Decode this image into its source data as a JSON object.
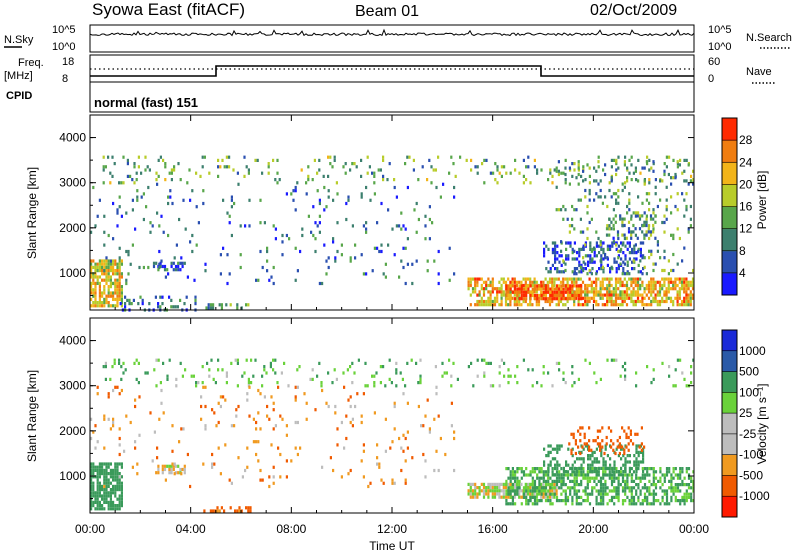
{
  "header": {
    "station": "Syowa East (fitACF)",
    "beam": "Beam 01",
    "date": "02/Oct/2009"
  },
  "strip": {
    "nsky_label": "N.Sky",
    "nsky_ticks": [
      "10^5",
      "10^0"
    ],
    "nsearch_label": "N.Search",
    "nsearch_ticks": [
      "10^5",
      "10^0"
    ],
    "freq_label": "Freq.",
    "freq_unit": "[MHz]",
    "freq_ticks": [
      "18",
      "8"
    ],
    "nave_label": "Nave",
    "nave_ticks": [
      "60",
      "0"
    ],
    "cpid_label": "CPID",
    "cpid_value": "normal (fast) 151"
  },
  "colors": {
    "power": [
      "#1a1aff",
      "#2a4fb0",
      "#3c7f6e",
      "#58a64a",
      "#b8cc2a",
      "#f2b419",
      "#f07d10",
      "#ff2a00"
    ],
    "velocity": [
      "#ff1a00",
      "#f05a00",
      "#f09a20",
      "#bdbdbd",
      "#bdbdbd",
      "#6ad23a",
      "#3a9a5a",
      "#2a5aa8",
      "#1a2ad8"
    ],
    "ground_scatter": "#bdbdbd"
  },
  "chart_data": [
    {
      "type": "heatmap",
      "panel": "power",
      "ylabel": "Slant Range [km]",
      "yticks": [
        "1000",
        "2000",
        "3000",
        "4000"
      ],
      "ylim": [
        180,
        4500
      ],
      "xlim": [
        0,
        24
      ],
      "colorbar_label": "Power [dB]",
      "colorbar_ticks": [
        "4",
        "8",
        "12",
        "16",
        "20",
        "24",
        "28"
      ],
      "colorbar_range": [
        0,
        32
      ],
      "clusters": [
        {
          "t": [
            0.0,
            1.3
          ],
          "r": [
            250,
            1300
          ],
          "value": 20,
          "density": 0.8
        },
        {
          "t": [
            1.0,
            4.2
          ],
          "r": [
            200,
            500
          ],
          "value": 8,
          "density": 0.3
        },
        {
          "t": [
            2.5,
            3.8
          ],
          "r": [
            1100,
            1250
          ],
          "value": 6,
          "density": 0.6
        },
        {
          "t": [
            4.5,
            6.5
          ],
          "r": [
            220,
            330
          ],
          "value": 12,
          "density": 0.5
        },
        {
          "t": [
            0.5,
            24.0
          ],
          "r": [
            3000,
            3600
          ],
          "value": 14,
          "density": 0.1
        },
        {
          "t": [
            0.0,
            14.5
          ],
          "r": [
            800,
            3000
          ],
          "value": 8,
          "density": 0.05
        },
        {
          "t": [
            15.0,
            24.0
          ],
          "r": [
            300,
            900
          ],
          "value": 22,
          "density": 0.65
        },
        {
          "t": [
            16.5,
            19.5
          ],
          "r": [
            400,
            750
          ],
          "value": 28,
          "density": 0.85
        },
        {
          "t": [
            18.0,
            22.0
          ],
          "r": [
            1000,
            1700
          ],
          "value": 6,
          "density": 0.35
        },
        {
          "t": [
            20.5,
            22.5
          ],
          "r": [
            1800,
            2300
          ],
          "value": 10,
          "density": 0.35
        },
        {
          "t": [
            18.5,
            24.0
          ],
          "r": [
            1000,
            3500
          ],
          "value": 12,
          "density": 0.12
        }
      ]
    },
    {
      "type": "heatmap",
      "panel": "velocity",
      "xlabel": "Time UT",
      "xticks": [
        "00:00",
        "04:00",
        "08:00",
        "12:00",
        "16:00",
        "20:00",
        "00:00"
      ],
      "ylabel": "Slant Range [km]",
      "yticks": [
        "1000",
        "2000",
        "3000",
        "4000"
      ],
      "ylim": [
        180,
        4500
      ],
      "xlim": [
        0,
        24
      ],
      "colorbar_label": "Velocity [m s⁻¹]",
      "colorbar_ticks": [
        "1000",
        "500",
        "100",
        "25",
        "-25",
        "-100",
        "-500",
        "-1000"
      ],
      "clusters": [
        {
          "t": [
            0.0,
            1.3
          ],
          "r": [
            250,
            1300
          ],
          "value": 400,
          "density": 0.8
        },
        {
          "t": [
            2.5,
            3.8
          ],
          "r": [
            1100,
            1250
          ],
          "value": 0,
          "density": 0.6
        },
        {
          "t": [
            4.5,
            6.5
          ],
          "r": [
            220,
            330
          ],
          "value": -150,
          "density": 0.5
        },
        {
          "t": [
            0.5,
            24.0
          ],
          "r": [
            3000,
            3600
          ],
          "value": 80,
          "density": 0.1
        },
        {
          "t": [
            0.0,
            14.5
          ],
          "r": [
            800,
            3000
          ],
          "value": -60,
          "density": 0.05
        },
        {
          "t": [
            15.0,
            18.5
          ],
          "r": [
            500,
            850
          ],
          "value": 0,
          "density": 0.85
        },
        {
          "t": [
            16.5,
            24.0
          ],
          "r": [
            400,
            1200
          ],
          "value": 120,
          "density": 0.55
        },
        {
          "t": [
            18.0,
            22.0
          ],
          "r": [
            1000,
            1700
          ],
          "value": 200,
          "density": 0.35
        },
        {
          "t": [
            19.0,
            22.0
          ],
          "r": [
            1500,
            2100
          ],
          "value": -200,
          "density": 0.25
        }
      ]
    }
  ]
}
